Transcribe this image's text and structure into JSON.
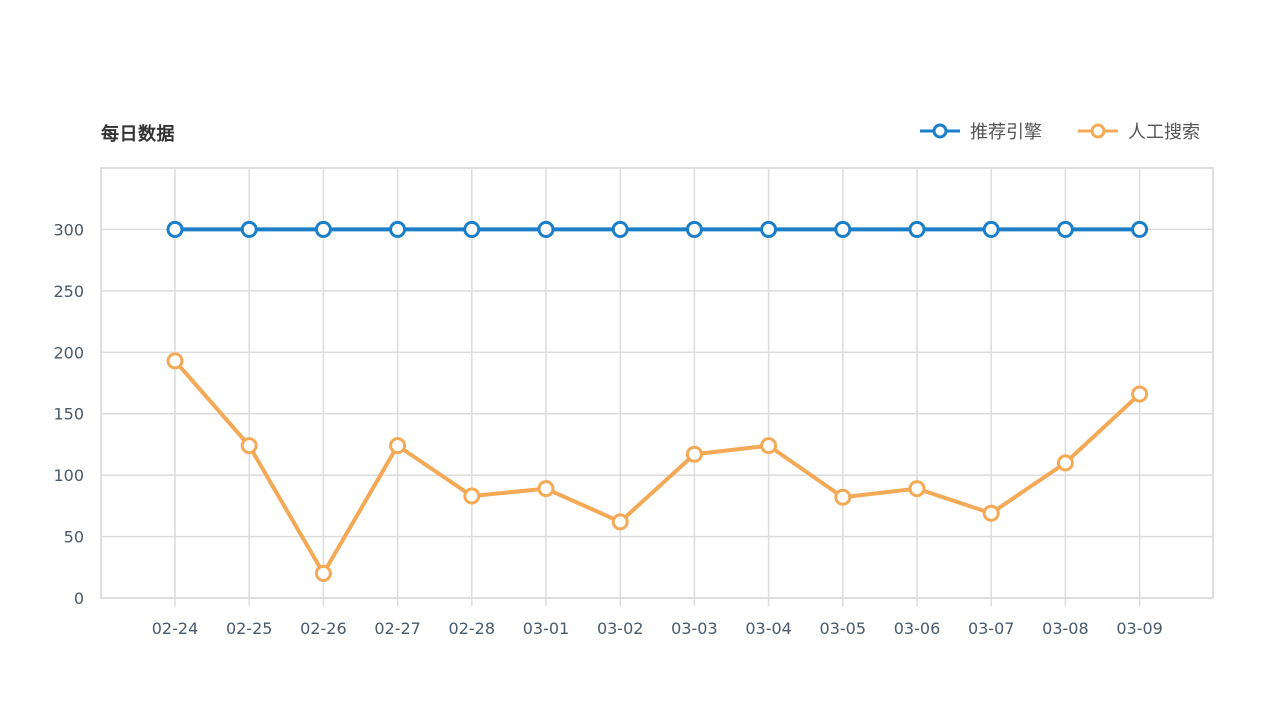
{
  "chart_data": {
    "type": "line",
    "title": "每日数据",
    "categories": [
      "02-24",
      "02-25",
      "02-26",
      "02-27",
      "02-28",
      "03-01",
      "03-02",
      "03-03",
      "03-04",
      "03-05",
      "03-06",
      "03-07",
      "03-08",
      "03-09"
    ],
    "yticks": [
      "0",
      "50",
      "100",
      "150",
      "200",
      "250",
      "300"
    ],
    "ylim": [
      0,
      350
    ],
    "grid": true,
    "legend_position": "top-right",
    "series": [
      {
        "name": "推荐引擎",
        "color": "#1a7fc8",
        "values": [
          300,
          300,
          300,
          300,
          300,
          300,
          300,
          300,
          300,
          300,
          300,
          300,
          300,
          300
        ]
      },
      {
        "name": "人工搜索",
        "color": "#f4a956",
        "values": [
          193,
          124,
          20,
          124,
          83,
          89,
          62,
          117,
          124,
          82,
          89,
          69,
          110,
          166
        ]
      }
    ]
  }
}
